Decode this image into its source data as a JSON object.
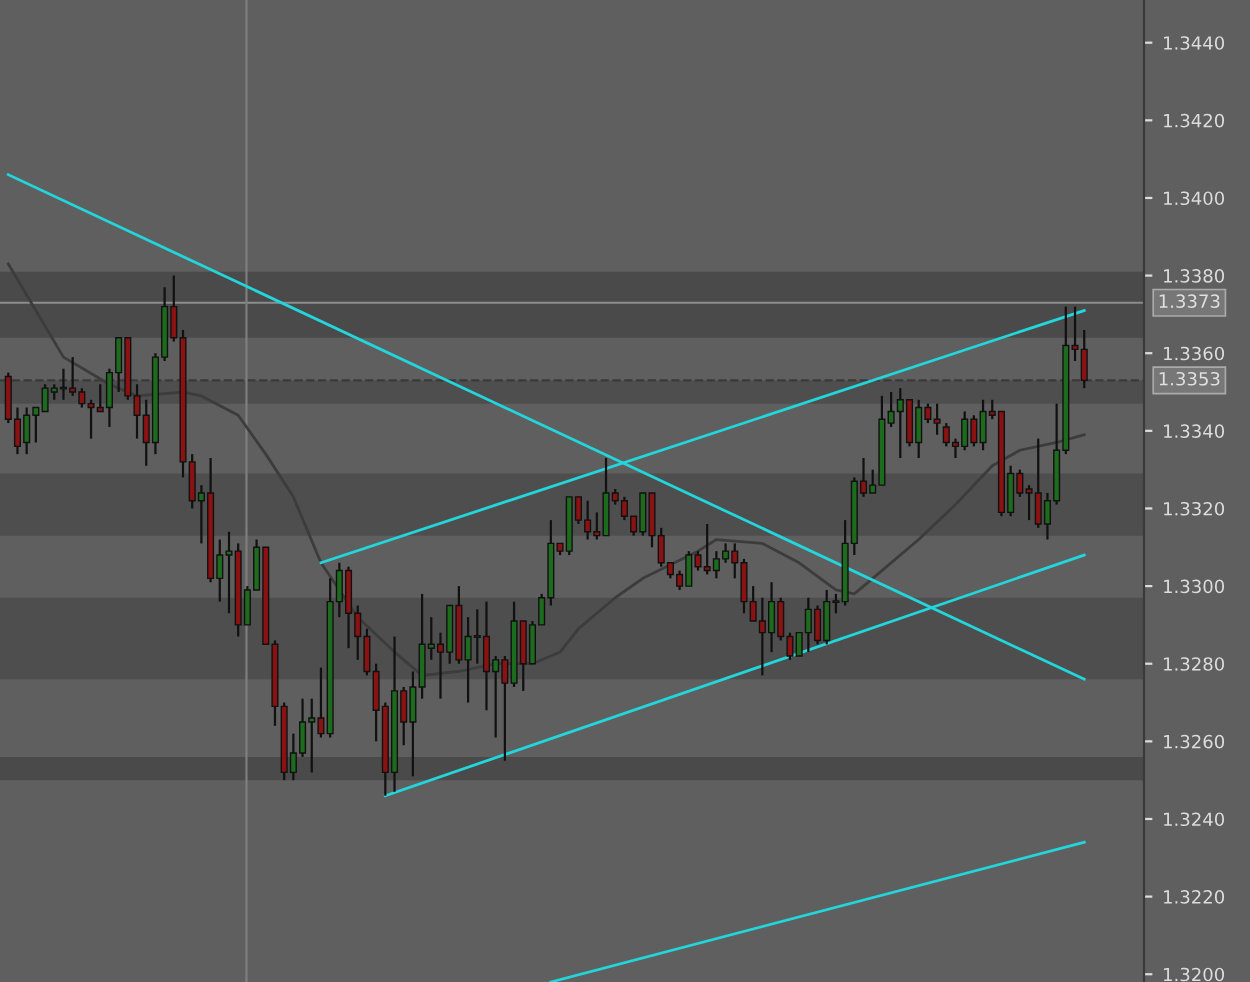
{
  "chart_data": {
    "type": "candlestick",
    "categories": [
      null,
      null,
      null,
      null,
      null,
      null,
      null,
      null,
      null,
      null,
      null,
      null,
      null,
      null,
      null,
      null,
      null,
      null,
      null,
      null,
      null,
      null,
      null,
      null,
      null,
      null,
      null,
      null,
      null,
      null,
      null,
      null,
      null,
      null,
      null,
      null,
      null,
      null,
      null,
      null,
      null,
      null,
      null,
      null,
      null,
      null,
      null,
      null,
      null,
      null,
      null,
      null,
      null,
      null,
      null,
      null,
      null,
      null,
      null,
      null,
      null,
      null,
      null,
      null,
      null,
      null,
      null,
      null,
      null,
      null,
      null,
      null,
      null,
      null,
      null,
      null,
      null,
      null,
      null,
      null,
      null,
      null,
      null,
      null,
      null,
      null,
      null,
      null,
      null,
      null,
      null,
      null,
      null,
      null,
      null,
      null,
      null,
      null,
      null,
      null,
      null,
      null,
      null,
      null,
      null,
      null,
      null,
      null,
      null,
      null,
      null,
      null,
      null,
      null,
      null,
      null,
      null,
      null
    ],
    "ohlc": [
      [
        1.3354,
        1.3355,
        1.3342,
        1.3343
      ],
      [
        1.3343,
        1.3346,
        1.3334,
        1.3336
      ],
      [
        1.3337,
        1.3346,
        1.3334,
        1.3344
      ],
      [
        1.3344,
        1.3346,
        1.3337,
        1.3346
      ],
      [
        1.3345,
        1.3352,
        1.3345,
        1.3351
      ],
      [
        1.335,
        1.3352,
        1.3348,
        1.3351
      ],
      [
        1.3351,
        1.3356,
        1.3348,
        1.3351
      ],
      [
        1.3351,
        1.3359,
        1.3349,
        1.335
      ],
      [
        1.335,
        1.3351,
        1.3346,
        1.3347
      ],
      [
        1.3347,
        1.3348,
        1.3338,
        1.3346
      ],
      [
        1.3346,
        1.3352,
        1.3345,
        1.3345
      ],
      [
        1.3346,
        1.3356,
        1.3341,
        1.3355
      ],
      [
        1.3355,
        1.3364,
        1.335,
        1.3364
      ],
      [
        1.3364,
        1.3364,
        1.3348,
        1.3349
      ],
      [
        1.3349,
        1.3352,
        1.3338,
        1.3344
      ],
      [
        1.3344,
        1.3348,
        1.3331,
        1.3337
      ],
      [
        1.3337,
        1.336,
        1.3334,
        1.3359
      ],
      [
        1.3359,
        1.3377,
        1.3358,
        1.3372
      ],
      [
        1.3372,
        1.338,
        1.3363,
        1.3364
      ],
      [
        1.3364,
        1.3366,
        1.3328,
        1.3332
      ],
      [
        1.3332,
        1.3334,
        1.332,
        1.3322
      ],
      [
        1.3322,
        1.3326,
        1.3311,
        1.3324
      ],
      [
        1.3324,
        1.3333,
        1.3301,
        1.3302
      ],
      [
        1.3302,
        1.3312,
        1.3296,
        1.3308
      ],
      [
        1.3308,
        1.3314,
        1.3293,
        1.3309
      ],
      [
        1.3309,
        1.3311,
        1.3287,
        1.329
      ],
      [
        1.329,
        1.33,
        1.329,
        1.3299
      ],
      [
        1.3299,
        1.3312,
        1.3299,
        1.331
      ],
      [
        1.331,
        1.331,
        1.3285,
        1.3285
      ],
      [
        1.3285,
        1.3286,
        1.3264,
        1.3269
      ],
      [
        1.3269,
        1.327,
        1.325,
        1.3252
      ],
      [
        1.3252,
        1.3262,
        1.325,
        1.3257
      ],
      [
        1.3257,
        1.3271,
        1.3256,
        1.3265
      ],
      [
        1.3265,
        1.3271,
        1.3252,
        1.3266
      ],
      [
        1.3266,
        1.3279,
        1.3261,
        1.3262
      ],
      [
        1.3262,
        1.3302,
        1.3261,
        1.3296
      ],
      [
        1.3296,
        1.3306,
        1.3292,
        1.3304
      ],
      [
        1.3304,
        1.3305,
        1.3284,
        1.3293
      ],
      [
        1.3293,
        1.3295,
        1.3281,
        1.3287
      ],
      [
        1.3287,
        1.3289,
        1.3277,
        1.3278
      ],
      [
        1.3278,
        1.328,
        1.326,
        1.3268
      ],
      [
        1.3269,
        1.327,
        1.3246,
        1.3252
      ],
      [
        1.3252,
        1.3287,
        1.3247,
        1.3273
      ],
      [
        1.3273,
        1.3274,
        1.3259,
        1.3265
      ],
      [
        1.3265,
        1.3278,
        1.3251,
        1.3274
      ],
      [
        1.3274,
        1.3298,
        1.3271,
        1.3285
      ],
      [
        1.3284,
        1.3292,
        1.3281,
        1.3285
      ],
      [
        1.3285,
        1.3288,
        1.3271,
        1.3283
      ],
      [
        1.3283,
        1.3295,
        1.328,
        1.3295
      ],
      [
        1.3295,
        1.33,
        1.328,
        1.3281
      ],
      [
        1.3281,
        1.3292,
        1.327,
        1.3287
      ],
      [
        1.3287,
        1.3294,
        1.328,
        1.3287
      ],
      [
        1.3287,
        1.3296,
        1.3268,
        1.3278
      ],
      [
        1.3278,
        1.3282,
        1.3261,
        1.3281
      ],
      [
        1.3281,
        1.3282,
        1.3255,
        1.3275
      ],
      [
        1.3275,
        1.3296,
        1.3274,
        1.3291
      ],
      [
        1.3291,
        1.3291,
        1.3273,
        1.328
      ],
      [
        1.328,
        1.3291,
        1.328,
        1.329
      ],
      [
        1.329,
        1.3298,
        1.329,
        1.3297
      ],
      [
        1.3297,
        1.3317,
        1.3295,
        1.3311
      ],
      [
        1.3311,
        1.3311,
        1.3308,
        1.3309
      ],
      [
        1.3309,
        1.3323,
        1.3308,
        1.3323
      ],
      [
        1.3323,
        1.3323,
        1.3316,
        1.3317
      ],
      [
        1.3317,
        1.3322,
        1.3312,
        1.3314
      ],
      [
        1.3314,
        1.3319,
        1.3312,
        1.3313
      ],
      [
        1.3313,
        1.3333,
        1.3313,
        1.3324
      ],
      [
        1.3324,
        1.3325,
        1.3321,
        1.3322
      ],
      [
        1.3322,
        1.3323,
        1.3317,
        1.3318
      ],
      [
        1.3318,
        1.3318,
        1.3313,
        1.3314
      ],
      [
        1.3314,
        1.3324,
        1.3313,
        1.3324
      ],
      [
        1.3324,
        1.3324,
        1.331,
        1.3313
      ],
      [
        1.3313,
        1.3315,
        1.3305,
        1.3306
      ],
      [
        1.3306,
        1.3306,
        1.3302,
        1.3303
      ],
      [
        1.3303,
        1.3304,
        1.3299,
        1.33
      ],
      [
        1.33,
        1.3309,
        1.33,
        1.3308
      ],
      [
        1.3308,
        1.3309,
        1.3304,
        1.3305
      ],
      [
        1.3305,
        1.3316,
        1.3303,
        1.3304
      ],
      [
        1.3304,
        1.3309,
        1.3302,
        1.3307
      ],
      [
        1.3307,
        1.3311,
        1.3306,
        1.3309
      ],
      [
        1.3309,
        1.3311,
        1.3302,
        1.3306
      ],
      [
        1.3306,
        1.3307,
        1.3293,
        1.3296
      ],
      [
        1.3296,
        1.33,
        1.3291,
        1.3291
      ],
      [
        1.3291,
        1.3297,
        1.3277,
        1.3288
      ],
      [
        1.3288,
        1.3301,
        1.3283,
        1.3296
      ],
      [
        1.3296,
        1.3297,
        1.3286,
        1.3287
      ],
      [
        1.3287,
        1.3288,
        1.3281,
        1.3282
      ],
      [
        1.3282,
        1.3288,
        1.3282,
        1.3288
      ],
      [
        1.3288,
        1.3297,
        1.3283,
        1.3294
      ],
      [
        1.3294,
        1.3295,
        1.3285,
        1.3286
      ],
      [
        1.3286,
        1.3299,
        1.3285,
        1.3296
      ],
      [
        1.3296,
        1.3298,
        1.3293,
        1.3296
      ],
      [
        1.3296,
        1.3317,
        1.3295,
        1.3311
      ],
      [
        1.3311,
        1.3328,
        1.3308,
        1.3327
      ],
      [
        1.3327,
        1.3333,
        1.3323,
        1.3324
      ],
      [
        1.3324,
        1.333,
        1.3324,
        1.3326
      ],
      [
        1.3326,
        1.3349,
        1.3326,
        1.3343
      ],
      [
        1.3342,
        1.335,
        1.3341,
        1.3345
      ],
      [
        1.3345,
        1.3351,
        1.3333,
        1.3348
      ],
      [
        1.3348,
        1.3348,
        1.3336,
        1.3337
      ],
      [
        1.3337,
        1.3348,
        1.3333,
        1.3346
      ],
      [
        1.3346,
        1.3347,
        1.3342,
        1.3343
      ],
      [
        1.3343,
        1.3347,
        1.3339,
        1.3342
      ],
      [
        1.3341,
        1.3342,
        1.3336,
        1.3337
      ],
      [
        1.3337,
        1.3338,
        1.3333,
        1.3336
      ],
      [
        1.3336,
        1.3345,
        1.3335,
        1.3343
      ],
      [
        1.3343,
        1.3344,
        1.3336,
        1.3337
      ],
      [
        1.3337,
        1.3348,
        1.3335,
        1.3345
      ],
      [
        1.3345,
        1.3348,
        1.3343,
        1.3344
      ],
      [
        1.3345,
        1.3345,
        1.3318,
        1.3319
      ],
      [
        1.3319,
        1.3331,
        1.3318,
        1.3329
      ],
      [
        1.3329,
        1.333,
        1.3323,
        1.3324
      ],
      [
        1.3325,
        1.3326,
        1.3317,
        1.3324
      ],
      [
        1.3324,
        1.3338,
        1.3315,
        1.3316
      ],
      [
        1.3316,
        1.3324,
        1.3312,
        1.3322
      ],
      [
        1.3322,
        1.3347,
        1.3321,
        1.3335
      ],
      [
        1.3335,
        1.3372,
        1.3334,
        1.3362
      ],
      [
        1.3362,
        1.3372,
        1.3358,
        1.3361
      ],
      [
        1.3361,
        1.3366,
        1.3351,
        1.3353
      ]
    ],
    "colors": [
      "#8b1212",
      "#8b1212",
      "#1d6b1d",
      "#1d6b1d",
      "#1d6b1d",
      "#1d6b1d",
      "#1d6b1d",
      "#8b1212",
      "#8b1212",
      "#8b1212",
      "#8b1212",
      "#1d6b1d",
      "#1d6b1d",
      "#8b1212",
      "#8b1212",
      "#8b1212",
      "#1d6b1d",
      "#1d6b1d",
      "#8b1212",
      "#8b1212",
      "#8b1212",
      "#1d6b1d",
      "#8b1212",
      "#1d6b1d",
      "#1d6b1d",
      "#8b1212",
      "#1d6b1d",
      "#1d6b1d",
      "#8b1212",
      "#8b1212",
      "#8b1212",
      "#1d6b1d",
      "#1d6b1d",
      "#1d6b1d",
      "#8b1212",
      "#1d6b1d",
      "#1d6b1d",
      "#8b1212",
      "#8b1212",
      "#8b1212",
      "#8b1212",
      "#8b1212",
      "#1d6b1d",
      "#8b1212",
      "#1d6b1d",
      "#1d6b1d",
      "#1d6b1d",
      "#8b1212",
      "#1d6b1d",
      "#8b1212",
      "#1d6b1d",
      "#1d6b1d",
      "#8b1212",
      "#1d6b1d",
      "#8b1212",
      "#1d6b1d",
      "#8b1212",
      "#1d6b1d",
      "#1d6b1d",
      "#1d6b1d",
      "#8b1212",
      "#1d6b1d",
      "#8b1212",
      "#8b1212",
      "#8b1212",
      "#1d6b1d",
      "#8b1212",
      "#8b1212",
      "#8b1212",
      "#1d6b1d",
      "#8b1212",
      "#8b1212",
      "#8b1212",
      "#8b1212",
      "#1d6b1d",
      "#8b1212",
      "#8b1212",
      "#1d6b1d",
      "#1d6b1d",
      "#8b1212",
      "#8b1212",
      "#8b1212",
      "#8b1212",
      "#1d6b1d",
      "#8b1212",
      "#8b1212",
      "#1d6b1d",
      "#1d6b1d",
      "#8b1212",
      "#1d6b1d",
      "#1d6b1d",
      "#1d6b1d",
      "#1d6b1d",
      "#8b1212",
      "#1d6b1d",
      "#1d6b1d",
      "#1d6b1d",
      "#1d6b1d",
      "#8b1212",
      "#1d6b1d",
      "#8b1212",
      "#8b1212",
      "#8b1212",
      "#8b1212",
      "#1d6b1d",
      "#8b1212",
      "#1d6b1d",
      "#8b1212",
      "#8b1212",
      "#1d6b1d",
      "#8b1212",
      "#8b1212",
      "#8b1212",
      "#1d6b1d",
      "#1d6b1d",
      "#1d6b1d",
      "#8b1212",
      "#8b1212"
    ],
    "series": [
      {
        "type": "line",
        "color": "#3c3c3c",
        "values": [
          1.3383,
          null,
          null,
          null,
          null,
          null,
          1.3359,
          null,
          null,
          null,
          null,
          1.3352,
          null,
          null,
          1.3349,
          null,
          null,
          null,
          null,
          1.335,
          null,
          1.3349,
          null,
          null,
          null,
          1.3344,
          null,
          null,
          1.3334,
          null,
          null,
          1.3323,
          null,
          null,
          1.3306,
          null,
          null,
          null,
          1.3292,
          null,
          null,
          null,
          1.3283,
          null,
          null,
          1.3277,
          null,
          null,
          null,
          1.3278,
          null,
          null,
          null,
          1.328,
          null,
          null,
          null,
          1.328,
          null,
          null,
          1.3283,
          null,
          1.3289,
          null,
          null,
          null,
          1.3297,
          null,
          null,
          1.3302,
          null,
          null,
          null,
          null,
          null,
          1.3309,
          null,
          1.3312,
          null,
          null,
          null,
          null,
          1.3311,
          null,
          null,
          null,
          1.3306,
          null,
          null,
          null,
          1.3299,
          null,
          1.3298,
          null,
          null,
          1.3304,
          null,
          null,
          null,
          1.3312,
          null,
          null,
          null,
          1.3321,
          null,
          null,
          null,
          1.3331,
          null,
          null,
          1.3335,
          null,
          null,
          null,
          1.3337,
          null,
          null,
          1.3339
        ]
      },
      {
        "type": "line",
        "color": "#22d6dc",
        "values": [
          1.3406,
          null,
          null,
          null,
          null,
          null,
          null,
          null,
          null,
          null,
          null,
          null,
          null,
          null,
          null,
          null,
          null,
          null,
          null,
          null,
          null,
          null,
          null,
          null,
          null,
          null,
          null,
          null,
          null,
          null,
          null,
          null,
          null,
          null,
          null,
          null,
          null,
          null,
          null,
          null,
          null,
          null,
          null,
          null,
          null,
          null,
          null,
          null,
          null,
          null,
          null,
          null,
          null,
          null,
          null,
          null,
          null,
          null,
          null,
          null,
          null,
          null,
          null,
          null,
          null,
          null,
          null,
          null,
          null,
          null,
          null,
          null,
          null,
          null,
          null,
          null,
          null,
          null,
          null,
          null,
          null,
          null,
          null,
          null,
          null,
          null,
          null,
          null,
          null,
          null,
          null,
          null,
          null,
          null,
          null,
          null,
          null,
          null,
          null,
          null,
          null,
          null,
          null,
          null,
          null,
          null,
          null,
          null,
          null,
          null,
          null,
          null,
          null,
          null,
          null,
          null,
          null,
          1.3276
        ]
      },
      {
        "type": "line",
        "color": "#22d6dc",
        "values": [
          null,
          null,
          null,
          null,
          null,
          null,
          null,
          null,
          null,
          null,
          null,
          null,
          null,
          null,
          null,
          null,
          null,
          null,
          null,
          null,
          null,
          null,
          null,
          null,
          null,
          null,
          null,
          null,
          null,
          null,
          null,
          null,
          null,
          null,
          1.3306,
          null,
          null,
          null,
          null,
          null,
          null,
          null,
          null,
          null,
          null,
          null,
          null,
          null,
          null,
          null,
          null,
          null,
          null,
          null,
          null,
          null,
          null,
          null,
          null,
          null,
          null,
          null,
          null,
          null,
          null,
          null,
          null,
          null,
          null,
          null,
          null,
          null,
          null,
          null,
          null,
          null,
          null,
          null,
          null,
          null,
          null,
          null,
          null,
          null,
          null,
          null,
          null,
          null,
          null,
          null,
          null,
          null,
          null,
          null,
          null,
          null,
          null,
          null,
          null,
          null,
          null,
          null,
          null,
          null,
          null,
          null,
          null,
          null,
          null,
          null,
          null,
          null,
          null,
          null,
          null,
          null,
          null,
          1.3371
        ]
      },
      {
        "type": "line",
        "color": "#22d6dc",
        "values": [
          null,
          null,
          null,
          null,
          null,
          null,
          null,
          null,
          null,
          null,
          null,
          null,
          null,
          null,
          null,
          null,
          null,
          null,
          null,
          null,
          null,
          null,
          null,
          null,
          null,
          null,
          null,
          null,
          null,
          null,
          null,
          null,
          null,
          null,
          null,
          null,
          null,
          null,
          null,
          null,
          null,
          1.3246,
          null,
          null,
          null,
          null,
          null,
          null,
          null,
          null,
          null,
          null,
          null,
          null,
          null,
          null,
          null,
          null,
          null,
          null,
          null,
          null,
          null,
          null,
          null,
          null,
          null,
          null,
          null,
          null,
          null,
          null,
          null,
          null,
          null,
          null,
          null,
          null,
          null,
          null,
          null,
          null,
          null,
          null,
          null,
          null,
          null,
          null,
          null,
          null,
          null,
          null,
          null,
          null,
          null,
          null,
          null,
          null,
          null,
          null,
          null,
          null,
          null,
          null,
          null,
          null,
          null,
          null,
          null,
          null,
          null,
          null,
          null,
          null,
          null,
          null,
          null,
          1.3308
        ]
      },
      {
        "type": "line",
        "color": "#22d6dc",
        "values": [
          null,
          null,
          null,
          null,
          null,
          null,
          null,
          null,
          null,
          null,
          null,
          null,
          null,
          null,
          null,
          null,
          null,
          null,
          null,
          null,
          null,
          null,
          null,
          null,
          null,
          null,
          null,
          null,
          null,
          null,
          null,
          null,
          null,
          null,
          null,
          null,
          null,
          null,
          null,
          null,
          null,
          null,
          null,
          null,
          null,
          null,
          null,
          null,
          null,
          null,
          null,
          null,
          null,
          null,
          null,
          null,
          null,
          null,
          null,
          1.3198,
          null,
          null,
          null,
          null,
          null,
          null,
          null,
          null,
          null,
          null,
          null,
          null,
          null,
          null,
          null,
          null,
          null,
          null,
          null,
          null,
          null,
          null,
          null,
          null,
          null,
          null,
          null,
          null,
          null,
          null,
          null,
          null,
          null,
          null,
          null,
          null,
          null,
          null,
          null,
          null,
          null,
          null,
          null,
          null,
          null,
          null,
          null,
          null,
          null,
          null,
          null,
          null,
          null,
          null,
          null,
          null,
          null,
          1.3234
        ]
      }
    ],
    "bands": [
      {
        "axis": "y",
        "from": 1.3364,
        "to": 1.3381,
        "color": "#4a4a4a"
      },
      {
        "axis": "y",
        "from": 1.3347,
        "to": 1.3353,
        "color": "#4e4e4e"
      },
      {
        "axis": "y",
        "from": 1.3313,
        "to": 1.3329,
        "color": "#4e4e4e"
      },
      {
        "axis": "y",
        "from": 1.3276,
        "to": 1.3297,
        "color": "#4e4e4e"
      },
      {
        "axis": "y",
        "from": 1.325,
        "to": 1.3256,
        "color": "#4a4a4a"
      }
    ],
    "ref_lines": [
      {
        "axis": "y",
        "value": 1.3373,
        "label": "1.3373",
        "color": "#8c8c8c",
        "line_style": "solid"
      },
      {
        "axis": "y",
        "value": 1.3353,
        "label": "1.3353",
        "color": "#3a3a3a",
        "line_style": "dashed"
      }
    ],
    "ylim": [
      1.3198,
      1.3451
    ],
    "yticks": [
      {
        "value": 1.32,
        "label": "1.3200"
      },
      {
        "value": 1.322,
        "label": "1.3220"
      },
      {
        "value": 1.324,
        "label": "1.3240"
      },
      {
        "value": 1.326,
        "label": "1.3260"
      },
      {
        "value": 1.328,
        "label": "1.3280"
      },
      {
        "value": 1.33,
        "label": "1.3300"
      },
      {
        "value": 1.332,
        "label": "1.3320"
      },
      {
        "value": 1.334,
        "label": "1.3340"
      },
      {
        "value": 1.336,
        "label": "1.3360"
      },
      {
        "value": 1.338,
        "label": "1.3380"
      },
      {
        "value": 1.34,
        "label": "1.3400"
      },
      {
        "value": 1.342,
        "label": "1.3420"
      },
      {
        "value": 1.344,
        "label": "1.3440"
      }
    ],
    "tick_labels": "y",
    "grid": false
  }
}
